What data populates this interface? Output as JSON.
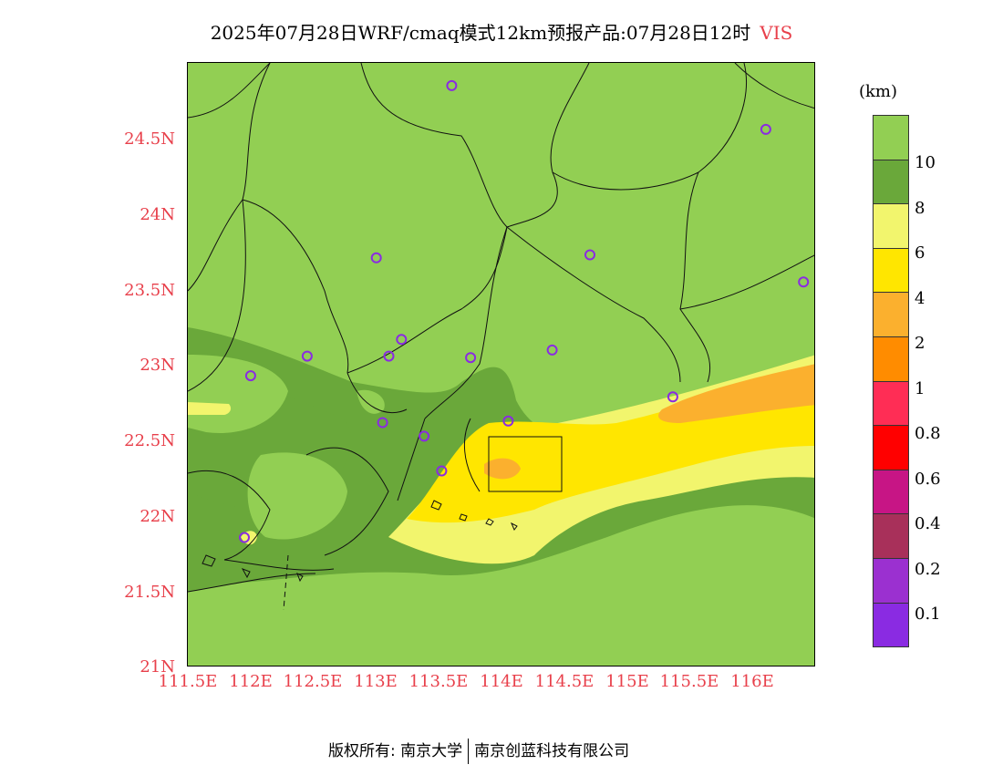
{
  "title": {
    "main": "2025年07月28日WRF/cmaq模式12km预报产品:07月28日12时",
    "variable": "VIS"
  },
  "axes": {
    "lat_ticks": [
      "24.5N",
      "24N",
      "23.5N",
      "23N",
      "22.5N",
      "22N",
      "21.5N",
      "21N"
    ],
    "lon_ticks": [
      "111.5E",
      "112E",
      "112.5E",
      "113E",
      "113.5E",
      "114E",
      "114.5E",
      "115E",
      "115.5E",
      "116E"
    ],
    "lat_range": [
      21.0,
      25.0
    ],
    "lon_range": [
      111.5,
      116.5
    ]
  },
  "legend": {
    "units": "(km)",
    "levels": [
      "10",
      "8",
      "6",
      "4",
      "2",
      "1",
      "0.8",
      "0.6",
      "0.4",
      "0.2",
      "0.1"
    ],
    "colors": [
      "#92cf53",
      "#6aa83a",
      "#f2f56d",
      "#ffe600",
      "#fbb02e",
      "#ff8c00",
      "#ff2d55",
      "#ff0000",
      "#c71585",
      "#a8305a",
      "#9b30d0",
      "#8a2be2"
    ]
  },
  "stations": [
    {
      "lon": 113.6,
      "lat": 24.85
    },
    {
      "lon": 116.1,
      "lat": 24.56
    },
    {
      "lon": 113.0,
      "lat": 23.71
    },
    {
      "lon": 114.7,
      "lat": 23.73
    },
    {
      "lon": 116.4,
      "lat": 23.55
    },
    {
      "lon": 113.2,
      "lat": 23.17
    },
    {
      "lon": 113.1,
      "lat": 23.06
    },
    {
      "lon": 113.75,
      "lat": 23.05
    },
    {
      "lon": 114.4,
      "lat": 23.1
    },
    {
      "lon": 112.45,
      "lat": 23.06
    },
    {
      "lon": 112.0,
      "lat": 22.93
    },
    {
      "lon": 113.05,
      "lat": 22.62
    },
    {
      "lon": 113.38,
      "lat": 22.53
    },
    {
      "lon": 114.05,
      "lat": 22.63
    },
    {
      "lon": 115.36,
      "lat": 22.79
    },
    {
      "lon": 113.52,
      "lat": 22.3
    },
    {
      "lon": 111.95,
      "lat": 21.86
    }
  ],
  "footer": {
    "left": "版权所有: 南京大学",
    "right": "南京创蓝科技有限公司"
  }
}
